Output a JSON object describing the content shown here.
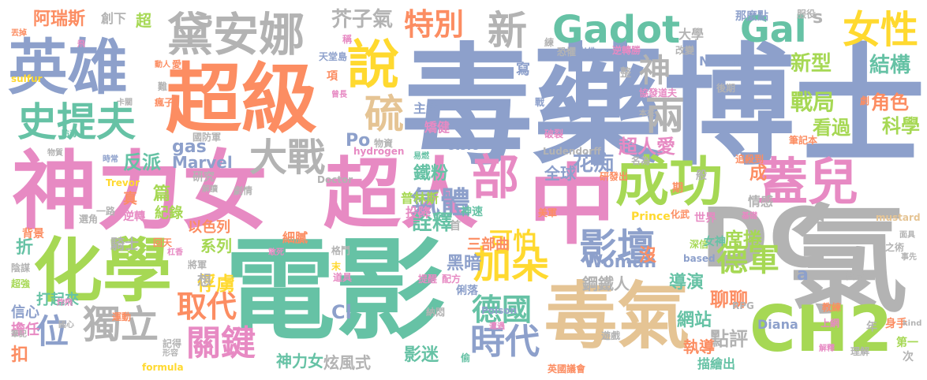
{
  "palette": {
    "blue": "#8da0cb",
    "green": "#66c2a5",
    "orange": "#fc8d62",
    "pink": "#e78ac3",
    "lime": "#a6d854",
    "yellow": "#ffd92f",
    "tan": "#e5c494",
    "gray": "#b3b3b3"
  },
  "words": [
    {
      "text": "毒藥博士",
      "color": "blue"
    },
    {
      "text": "電影",
      "color": "green"
    },
    {
      "text": "神力女",
      "color": "pink"
    },
    {
      "text": "超人",
      "color": "pink"
    },
    {
      "text": "氯",
      "color": "gray"
    },
    {
      "text": "中",
      "color": "pink"
    },
    {
      "text": "超級",
      "color": "orange"
    },
    {
      "text": "化學",
      "color": "lime"
    },
    {
      "text": "英雄",
      "color": "blue"
    },
    {
      "text": "DC",
      "color": "gray"
    },
    {
      "text": "毒氣",
      "color": "tan"
    },
    {
      "text": "CH2",
      "color": "lime"
    },
    {
      "text": "黛安娜",
      "color": "gray"
    },
    {
      "text": "成功",
      "color": "lime"
    },
    {
      "text": "蓋兒",
      "color": "pink"
    },
    {
      "text": "史提夫",
      "color": "green"
    },
    {
      "text": "說",
      "color": "yellow"
    },
    {
      "text": "Gadot",
      "color": "green"
    },
    {
      "text": "Gal",
      "color": "green"
    },
    {
      "text": "女性",
      "color": "yellow"
    },
    {
      "text": "特別",
      "color": "orange"
    },
    {
      "text": "新",
      "color": "gray"
    },
    {
      "text": "硫",
      "color": "tan"
    },
    {
      "text": "大戰",
      "color": "gray"
    },
    {
      "text": "部",
      "color": "pink"
    },
    {
      "text": "影壇",
      "color": "blue"
    },
    {
      "text": "加朵",
      "color": "yellow"
    },
    {
      "text": "氣體",
      "color": "blue"
    },
    {
      "text": "獨立",
      "color": "gray"
    },
    {
      "text": "德軍",
      "color": "lime"
    },
    {
      "text": "時代",
      "color": "blue"
    },
    {
      "text": "關鍵",
      "color": "pink"
    },
    {
      "text": "德國",
      "color": "green"
    },
    {
      "text": "取代",
      "color": "orange"
    },
    {
      "text": "位",
      "color": "blue"
    },
    {
      "text": "阿瑞斯",
      "color": "orange"
    },
    {
      "text": "芥子氣",
      "color": "gray"
    },
    {
      "text": "新型",
      "color": "lime"
    },
    {
      "text": "結構",
      "color": "green"
    },
    {
      "text": "戰局",
      "color": "lime"
    },
    {
      "text": "兩",
      "color": "gray"
    },
    {
      "text": "神",
      "color": "gray"
    },
    {
      "text": "科學",
      "color": "lime"
    },
    {
      "text": "角色",
      "color": "orange"
    },
    {
      "text": "看過",
      "color": "lime"
    },
    {
      "text": "超人愛",
      "color": "pink"
    },
    {
      "text": "全球",
      "color": "blue"
    },
    {
      "text": "花痴",
      "color": "blue"
    },
    {
      "text": "鐵粉",
      "color": "green"
    },
    {
      "text": "詮釋",
      "color": "green"
    },
    {
      "text": "可怕",
      "color": "yellow"
    },
    {
      "text": "Woman",
      "color": "blue"
    },
    {
      "text": "席捲",
      "color": "lime"
    },
    {
      "text": "鋼鐵人",
      "color": "gray"
    },
    {
      "text": "黑暗",
      "color": "blue"
    },
    {
      "text": "三部曲",
      "color": "orange"
    },
    {
      "text": "聊聊",
      "color": "orange"
    },
    {
      "text": "導演",
      "color": "green"
    },
    {
      "text": "網站",
      "color": "green"
    },
    {
      "text": "點評",
      "color": "gray"
    },
    {
      "text": "執導",
      "color": "orange"
    },
    {
      "text": "描繪出",
      "color": "green"
    },
    {
      "text": "影迷",
      "color": "green"
    },
    {
      "text": "炫風式",
      "color": "gray"
    },
    {
      "text": "神力女",
      "color": "green"
    },
    {
      "text": "俘虜",
      "color": "yellow"
    },
    {
      "text": "系列",
      "color": "lime"
    },
    {
      "text": "Marvel",
      "color": "blue"
    },
    {
      "text": "gas",
      "color": "blue"
    },
    {
      "text": "Po",
      "color": "blue"
    },
    {
      "text": "反派",
      "color": "green"
    },
    {
      "text": "篇",
      "color": "lime"
    },
    {
      "text": "紀錄",
      "color": "lime"
    },
    {
      "text": "以色列",
      "color": "orange"
    },
    {
      "text": "騎士",
      "color": "gray"
    },
    {
      "text": "Cl",
      "color": "blue"
    },
    {
      "text": "a",
      "color": "blue"
    },
    {
      "text": "s",
      "color": "gray"
    },
    {
      "text": "沒",
      "color": "orange"
    },
    {
      "text": "成",
      "color": "orange"
    },
    {
      "text": "首",
      "color": "gray"
    },
    {
      "text": "神速",
      "color": "green"
    },
    {
      "text": "投降",
      "color": "pink"
    },
    {
      "text": "普林斯",
      "color": "lime"
    },
    {
      "text": "情感",
      "color": "gray"
    },
    {
      "text": "世界",
      "color": "pink"
    },
    {
      "text": "深信",
      "color": "lime"
    },
    {
      "text": "女神",
      "color": "green"
    },
    {
      "text": "Diana",
      "color": "blue"
    },
    {
      "text": "第一",
      "color": "lime"
    },
    {
      "text": "身手",
      "color": "orange"
    },
    {
      "text": "大學",
      "color": "gray"
    },
    {
      "text": "Nolan",
      "color": "blue"
    },
    {
      "text": "那麼點",
      "color": "blue"
    },
    {
      "text": "服役",
      "color": "gray"
    },
    {
      "text": "超",
      "color": "lime"
    },
    {
      "text": "創下",
      "color": "gray"
    },
    {
      "text": "主角",
      "color": "blue"
    },
    {
      "text": "矯健",
      "color": "pink"
    },
    {
      "text": "物資",
      "color": "gray"
    },
    {
      "text": "Steve",
      "color": "blue"
    },
    {
      "text": "Ludendorff",
      "color": "gray"
    },
    {
      "text": "名為",
      "color": "gray"
    },
    {
      "text": "Prince",
      "color": "yellow"
    },
    {
      "text": "化武",
      "color": "orange"
    },
    {
      "text": "寫",
      "color": "blue"
    },
    {
      "text": "戰",
      "color": "blue"
    },
    {
      "text": "破裂",
      "color": "pink"
    },
    {
      "text": "般",
      "color": "gray"
    },
    {
      "text": "研發出",
      "color": "orange"
    },
    {
      "text": "追殺到",
      "color": "orange"
    },
    {
      "text": "筆記本",
      "color": "orange"
    },
    {
      "text": "本來",
      "color": "gray"
    },
    {
      "text": "國防軍",
      "color": "gray"
    },
    {
      "text": "研究",
      "color": "gray"
    },
    {
      "text": "Trevor",
      "color": "yellow"
    },
    {
      "text": "Doctor",
      "color": "gray"
    },
    {
      "text": "Poison",
      "color": "blue"
    },
    {
      "text": "RPG",
      "color": "gray"
    },
    {
      "text": "based",
      "color": "blue"
    },
    {
      "text": "kind",
      "color": "gray"
    },
    {
      "text": "mustard",
      "color": "tan"
    },
    {
      "text": "hydrogen",
      "color": "pink"
    },
    {
      "text": "sulfur",
      "color": "yellow"
    },
    {
      "text": "formula",
      "color": "yellow"
    },
    {
      "text": "折",
      "color": "green"
    },
    {
      "text": "扣",
      "color": "orange"
    },
    {
      "text": "擔任",
      "color": "pink"
    },
    {
      "text": "信心",
      "color": "blue"
    },
    {
      "text": "打起來",
      "color": "green"
    },
    {
      "text": "背景",
      "color": "orange"
    },
    {
      "text": "逆轉",
      "color": "pink"
    },
    {
      "text": "回天",
      "color": "orange"
    },
    {
      "text": "細膩",
      "color": "orange"
    },
    {
      "text": "格鬥",
      "color": "gray"
    },
    {
      "text": "將軍",
      "color": "gray"
    },
    {
      "text": "想",
      "color": "gray"
    },
    {
      "text": "末",
      "color": "yellow"
    },
    {
      "text": "道具",
      "color": "pink"
    },
    {
      "text": "提醒",
      "color": "pink"
    },
    {
      "text": "配方",
      "color": "pink"
    },
    {
      "text": "俐落",
      "color": "blue"
    },
    {
      "text": "納悶",
      "color": "gray"
    },
    {
      "text": "遊戲",
      "color": "gray"
    },
    {
      "text": "美軍",
      "color": "orange"
    },
    {
      "text": "英國議會",
      "color": "orange"
    },
    {
      "text": "理解",
      "color": "gray"
    },
    {
      "text": "次",
      "color": "gray"
    },
    {
      "text": "年",
      "color": "gray"
    },
    {
      "text": "教練",
      "color": "orange"
    },
    {
      "text": "上網",
      "color": "pink"
    },
    {
      "text": "貧乏",
      "color": "gray"
    },
    {
      "text": "之術",
      "color": "gray"
    },
    {
      "text": "事先",
      "color": "gray"
    },
    {
      "text": "面具",
      "color": "gray"
    },
    {
      "text": "劇",
      "color": "orange"
    },
    {
      "text": "後期",
      "color": "gray"
    },
    {
      "text": "改變",
      "color": "gray"
    },
    {
      "text": "協發道夫",
      "color": "pink"
    },
    {
      "text": "崔佛",
      "color": "blue"
    },
    {
      "text": "逆轉勝",
      "color": "pink"
    },
    {
      "text": "恐懼",
      "color": "gray"
    },
    {
      "text": "練",
      "color": "gray"
    },
    {
      "text": "天堂島",
      "color": "blue"
    },
    {
      "text": "瘋子",
      "color": "orange"
    },
    {
      "text": "卡關",
      "color": "gray"
    },
    {
      "text": "防毒",
      "color": "green"
    },
    {
      "text": "丟掉",
      "color": "orange"
    },
    {
      "text": "飛",
      "color": "pink"
    },
    {
      "text": "時常",
      "color": "blue"
    },
    {
      "text": "真",
      "color": "orange"
    },
    {
      "text": "超強",
      "color": "lime"
    },
    {
      "text": "陰謀",
      "color": "gray"
    },
    {
      "text": "筆記",
      "color": "gray"
    },
    {
      "text": "國心",
      "color": "gray"
    },
    {
      "text": "運動",
      "color": "orange"
    },
    {
      "text": "炸飛",
      "color": "pink"
    },
    {
      "text": "記得",
      "color": "gray"
    },
    {
      "text": "形容",
      "color": "gray"
    },
    {
      "text": "一路",
      "color": "gray"
    },
    {
      "text": "選角",
      "color": "gray"
    },
    {
      "text": "劇情",
      "color": "gray"
    },
    {
      "text": "解讀",
      "color": "gray"
    },
    {
      "text": "期",
      "color": "orange"
    },
    {
      "text": "項",
      "color": "orange"
    },
    {
      "text": "易燃",
      "color": "green"
    },
    {
      "text": "基礎",
      "color": "pink"
    },
    {
      "text": "玻璃",
      "color": "pink"
    },
    {
      "text": "杠香",
      "color": "pink"
    },
    {
      "text": "敢死",
      "color": "pink"
    },
    {
      "text": "遭遇",
      "color": "pink"
    },
    {
      "text": "解釋",
      "color": "pink"
    },
    {
      "text": "稱",
      "color": "pink"
    },
    {
      "text": "整",
      "color": "gray"
    },
    {
      "text": "難",
      "color": "gray"
    },
    {
      "text": "曾長",
      "color": "pink"
    },
    {
      "text": "愛",
      "color": "orange"
    },
    {
      "text": "動人",
      "color": "orange"
    },
    {
      "text": "偷",
      "color": "green"
    },
    {
      "text": "物質",
      "color": "gray"
    }
  ]
}
